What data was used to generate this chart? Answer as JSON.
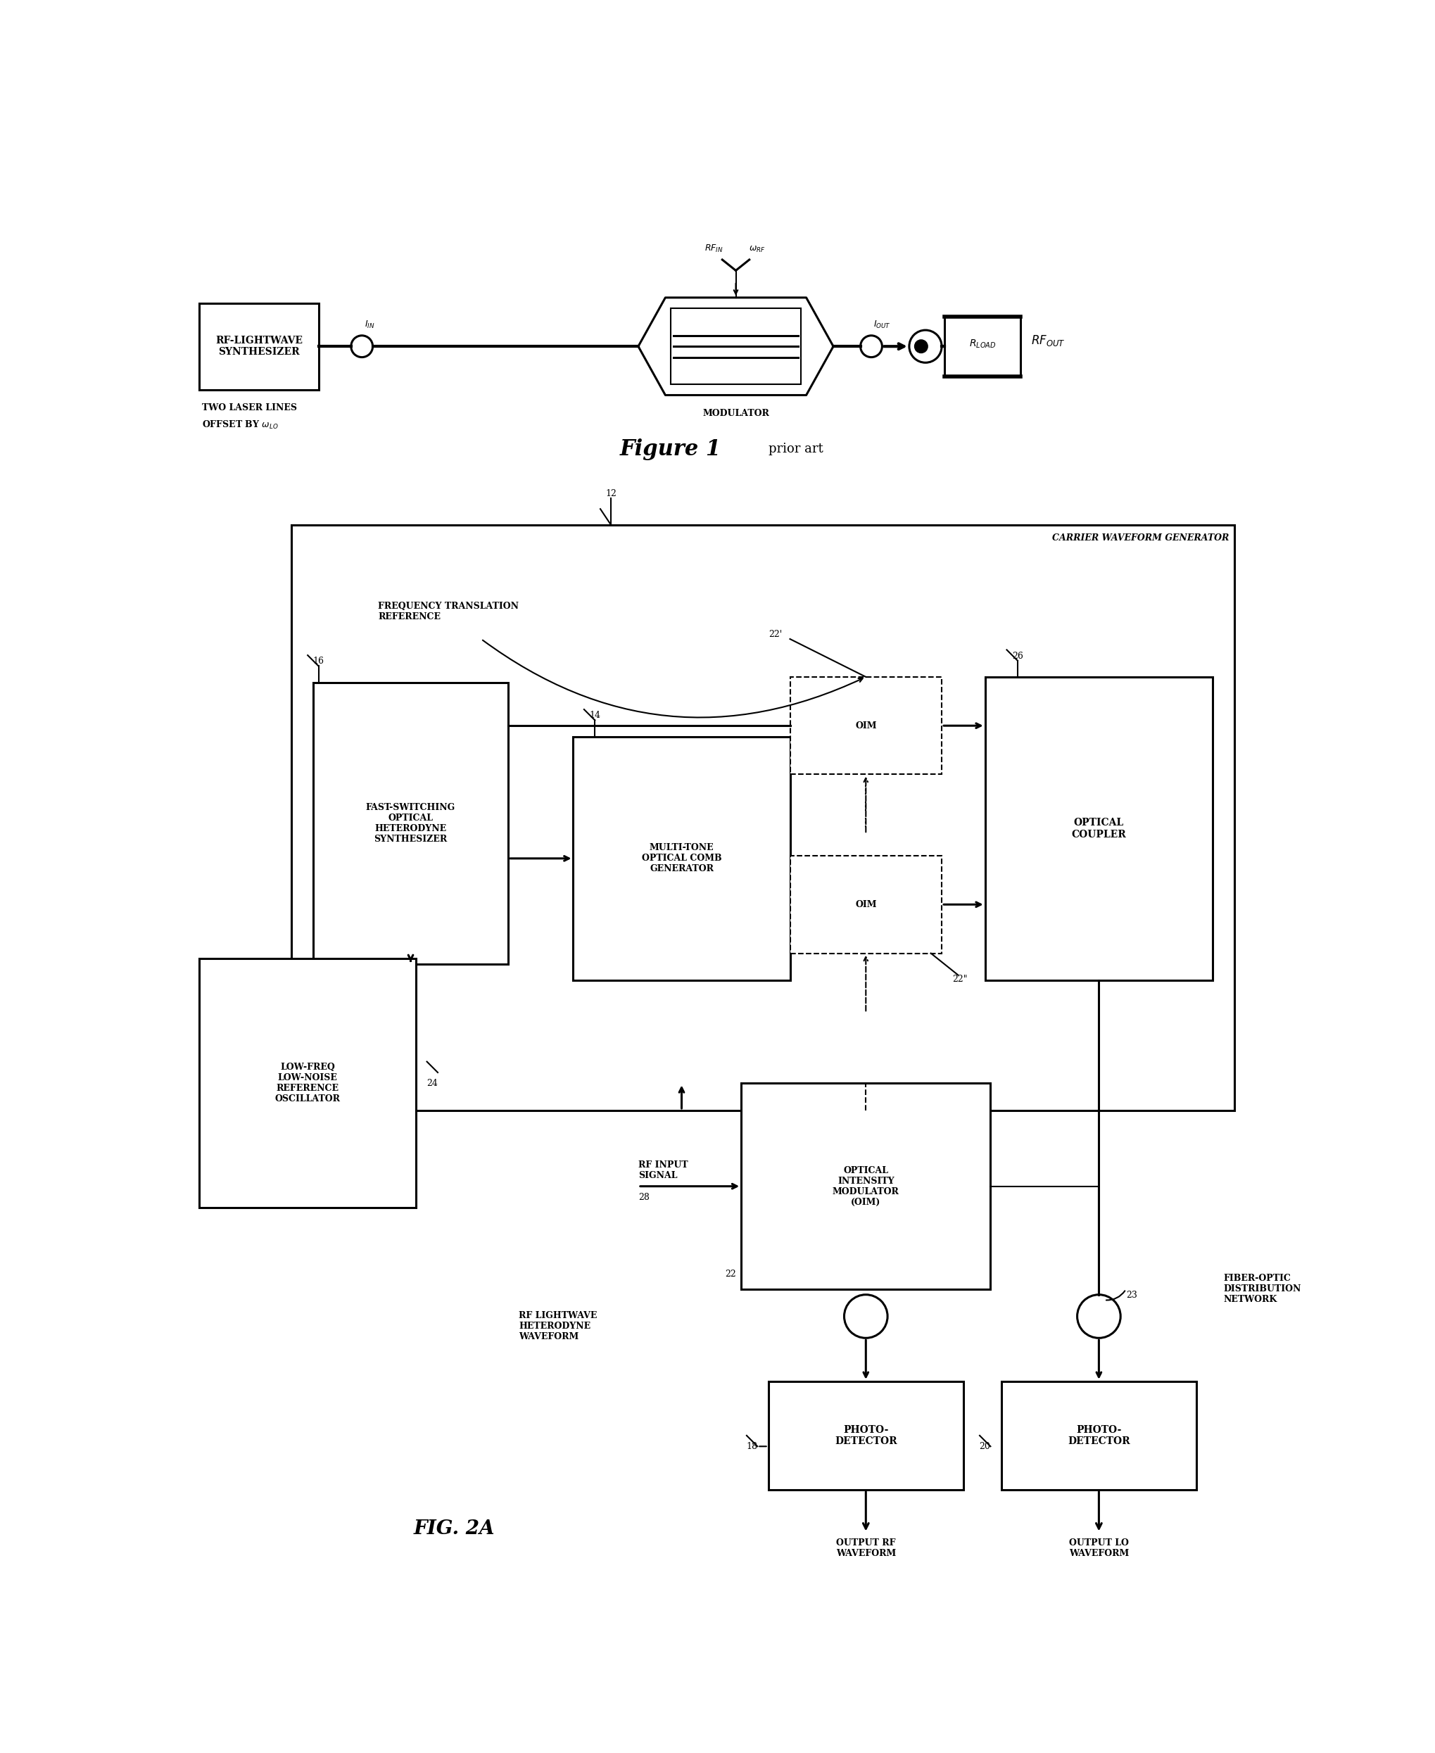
{
  "fig_width": 20.4,
  "fig_height": 24.91,
  "bg_color": "#ffffff",
  "fig1_synth_label": "RF-LIGHTWAVE\nSYNTHESIZER",
  "fig1_mod_label": "MODULATOR",
  "fig1_twolaser": "TWO LASER LINES",
  "fig1_offsetby": "OFFSET BY ω",
  "fig1_wlo_sub": "LO",
  "fig1_title": "Figure 1",
  "fig1_subtitle": "prior art",
  "fig2_title": "FIG. 2A",
  "cwg_label": "CARRIER WAVEFORM GENERATOR",
  "label_16": "16",
  "label_14": "14",
  "label_12": "12",
  "label_26": "26",
  "label_22p": "22'",
  "label_22pp": "22\"",
  "label_24": "24",
  "label_28": "28",
  "label_22": "22",
  "label_18": "18",
  "label_20": "20",
  "label_23": "23",
  "box_synth": "FAST-SWITCHING\nOPTICAL\nHETERODYNE\nSYNTHESIZER",
  "box_comb": "MULTI-TONE\nOPTICAL COMB\nGENERATOR",
  "box_coupler": "OPTICAL\nCOUPLER",
  "box_oim": "OIM",
  "box_oim_big": "OPTICAL\nINTENSITY\nMODULATOR\n(OIM)",
  "box_ref": "LOW-FREQ\nLOW-NOISE\nREFERENCE\nOSCILLATOR",
  "box_pd": "PHOTO-\nDETECTOR",
  "label_freq_ref": "FREQUENCY TRANSLATION\nREFERENCE",
  "label_rf_input": "RF INPUT\nSIGNAL",
  "label_rf_lw": "RF LIGHTWAVE\nHETERODYNE\nWAVEFORM",
  "label_out_rf": "OUTPUT RF\nWAVEFORM",
  "label_out_lo": "OUTPUT LO\nWAVEFORM",
  "label_fiber": "FIBER-OPTIC\nDISTRIBUTION\nNETWORK"
}
